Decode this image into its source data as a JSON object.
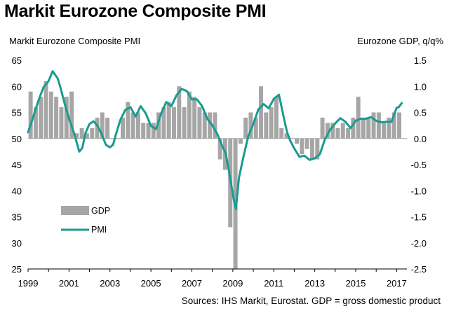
{
  "title": "Markit Eurozone Composite PMI",
  "source": "Sources: IHS Markit, Eurostat. GDP = gross domestic product",
  "chart_data": {
    "type": "bar+line",
    "title": "Markit Eurozone Composite PMI",
    "y_left_label": "Markit Eurozone Composite PMI",
    "y_right_label": "Eurozone GDP, q/q%",
    "y_left_range": [
      25,
      65
    ],
    "y_left_ticks": [
      "65",
      "60",
      "55",
      "50",
      "45",
      "40",
      "35",
      "30",
      "25"
    ],
    "y_right_range": [
      -2.5,
      1.5
    ],
    "y_right_ticks": [
      "1.5",
      "1.0",
      "0.5",
      "0.0",
      "-0.5",
      "-1.0",
      "-1.5",
      "-2.0",
      "-2.5"
    ],
    "x_range": [
      1999.0,
      2017.5
    ],
    "x_ticks": [
      "1999",
      "2001",
      "2003",
      "2005",
      "2007",
      "2009",
      "2011",
      "2013",
      "2015",
      "2017"
    ],
    "grid": false,
    "legend": "lower-left",
    "colors": {
      "gdp": "#a6a6a6",
      "pmi": "#1a9b8f"
    },
    "series": [
      {
        "name": "GDP",
        "kind": "bar",
        "axis": "right",
        "x": [
          1999.0,
          1999.25,
          1999.5,
          1999.75,
          2000.0,
          2000.25,
          2000.5,
          2000.75,
          2001.0,
          2001.25,
          2001.5,
          2001.75,
          2002.0,
          2002.25,
          2002.5,
          2002.75,
          2003.0,
          2003.25,
          2003.5,
          2003.75,
          2004.0,
          2004.25,
          2004.5,
          2004.75,
          2005.0,
          2005.25,
          2005.5,
          2005.75,
          2006.0,
          2006.25,
          2006.5,
          2006.75,
          2007.0,
          2007.25,
          2007.5,
          2007.75,
          2008.0,
          2008.25,
          2008.5,
          2008.75,
          2009.0,
          2009.25,
          2009.5,
          2009.75,
          2010.0,
          2010.25,
          2010.5,
          2010.75,
          2011.0,
          2011.25,
          2011.5,
          2011.75,
          2012.0,
          2012.25,
          2012.5,
          2012.75,
          2013.0,
          2013.25,
          2013.5,
          2013.75,
          2014.0,
          2014.25,
          2014.5,
          2014.75,
          2015.0,
          2015.25,
          2015.5,
          2015.75,
          2016.0,
          2016.25,
          2016.5,
          2016.75,
          2017.0
        ],
        "values": [
          0.9,
          0.6,
          0.8,
          1.1,
          0.9,
          0.8,
          0.6,
          0.8,
          0.9,
          0.1,
          0.2,
          0.1,
          0.2,
          0.4,
          0.5,
          0.4,
          0.0,
          0.0,
          0.4,
          0.7,
          0.5,
          0.5,
          0.3,
          0.3,
          0.3,
          0.5,
          0.6,
          0.7,
          0.6,
          1.0,
          0.6,
          0.9,
          0.8,
          0.6,
          0.5,
          0.5,
          0.5,
          -0.4,
          -0.6,
          -1.7,
          -2.5,
          -0.1,
          0.4,
          0.5,
          0.4,
          1.0,
          0.5,
          0.6,
          0.8,
          0.2,
          0.1,
          0.0,
          -0.1,
          -0.3,
          -0.2,
          -0.4,
          -0.4,
          0.4,
          0.3,
          0.3,
          0.2,
          0.3,
          0.2,
          0.4,
          0.8,
          0.4,
          0.4,
          0.5,
          0.5,
          0.3,
          0.4,
          0.5,
          0.5
        ]
      },
      {
        "name": "PMI",
        "kind": "line",
        "axis": "left",
        "x": [
          1999.0,
          1999.2,
          1999.5,
          1999.75,
          2000.0,
          2000.2,
          2000.45,
          2000.6,
          2000.8,
          2001.0,
          2001.25,
          2001.5,
          2001.65,
          2001.8,
          2002.0,
          2002.2,
          2002.4,
          2002.6,
          2002.8,
          2003.0,
          2003.15,
          2003.3,
          2003.5,
          2003.75,
          2004.0,
          2004.25,
          2004.5,
          2004.75,
          2005.0,
          2005.25,
          2005.5,
          2005.75,
          2006.0,
          2006.25,
          2006.5,
          2006.75,
          2007.0,
          2007.25,
          2007.5,
          2007.75,
          2008.0,
          2008.25,
          2008.5,
          2008.65,
          2008.8,
          2008.95,
          2009.05,
          2009.15,
          2009.3,
          2009.5,
          2009.75,
          2010.0,
          2010.25,
          2010.5,
          2010.75,
          2011.0,
          2011.25,
          2011.5,
          2011.65,
          2011.8,
          2012.0,
          2012.25,
          2012.5,
          2012.75,
          2013.0,
          2013.25,
          2013.5,
          2013.75,
          2014.0,
          2014.25,
          2014.5,
          2014.75,
          2015.0,
          2015.25,
          2015.5,
          2015.75,
          2016.0,
          2016.25,
          2016.5,
          2016.75,
          2017.0,
          2017.1,
          2017.25
        ],
        "values": [
          51.2,
          53.5,
          57.2,
          59.8,
          61.0,
          62.9,
          61.5,
          59.5,
          56.5,
          53.8,
          51.0,
          47.5,
          48.2,
          51.0,
          52.8,
          53.3,
          52.4,
          50.8,
          48.8,
          48.3,
          48.8,
          50.9,
          53.5,
          55.5,
          56.0,
          54.2,
          56.2,
          54.8,
          52.4,
          51.8,
          54.8,
          57.0,
          56.2,
          58.3,
          59.5,
          59.1,
          57.5,
          57.5,
          56.2,
          53.8,
          52.5,
          50.8,
          48.4,
          47.2,
          44.0,
          40.5,
          38.2,
          36.5,
          42.5,
          46.2,
          50.4,
          52.8,
          55.6,
          56.6,
          55.8,
          57.6,
          58.4,
          53.8,
          51.2,
          49.6,
          48.1,
          46.5,
          46.7,
          45.9,
          46.2,
          47.0,
          49.9,
          51.7,
          52.9,
          53.9,
          53.2,
          52.0,
          53.4,
          53.8,
          53.8,
          54.1,
          53.4,
          53.1,
          53.2,
          53.2,
          55.9,
          56.0,
          56.8
        ]
      }
    ]
  }
}
